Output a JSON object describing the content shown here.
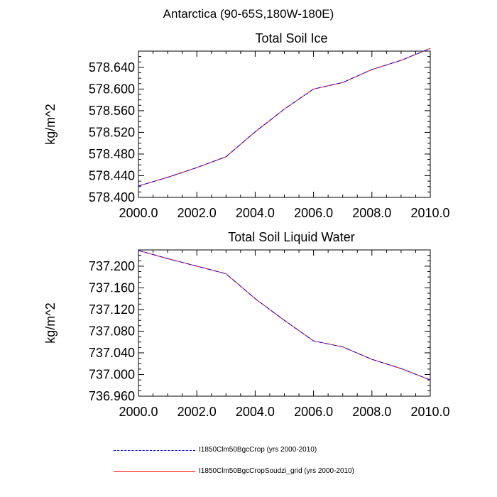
{
  "title": "Antarctica (90-65S,180W-180E)",
  "x": [
    2000,
    2001,
    2002,
    2003,
    2004,
    2005,
    2006,
    2007,
    2008,
    2009,
    2010
  ],
  "series_style": [
    {
      "name": "I1850Clm50BgcCrop (yrs 2000-2010)",
      "color": "#0000ff",
      "dash": "dashed"
    },
    {
      "name": "I1850Clm50BgcCropSoudzi_grid (yrs 2000-2010)",
      "color": "#ff0000",
      "dash": "solid"
    }
  ],
  "chart_data": [
    {
      "type": "line",
      "title": "Total Soil Ice",
      "xlabel": "",
      "ylabel": "kg/m^2",
      "xlim": [
        2000,
        2010
      ],
      "ylim": [
        578.4,
        578.67
      ],
      "xticks": [
        "2000.0",
        "2002.0",
        "2004.0",
        "2006.0",
        "2008.0",
        "2010.0"
      ],
      "yticks": [
        "578.400",
        "578.440",
        "578.480",
        "578.520",
        "578.560",
        "578.600",
        "578.640"
      ],
      "series": [
        {
          "name": "I1850Clm50BgcCrop (yrs 2000-2010)",
          "values": [
            578.421,
            578.437,
            578.455,
            578.475,
            578.521,
            578.563,
            578.6,
            578.612,
            578.636,
            578.653,
            578.675
          ]
        },
        {
          "name": "I1850Clm50BgcCropSoudzi_grid (yrs 2000-2010)",
          "values": [
            578.421,
            578.437,
            578.455,
            578.475,
            578.521,
            578.563,
            578.6,
            578.612,
            578.636,
            578.653,
            578.675
          ]
        }
      ]
    },
    {
      "type": "line",
      "title": "Total Soil Liquid Water",
      "xlabel": "",
      "ylabel": "kg/m^2",
      "xlim": [
        2000,
        2010
      ],
      "ylim": [
        736.96,
        737.23
      ],
      "xticks": [
        "2000.0",
        "2002.0",
        "2004.0",
        "2006.0",
        "2008.0",
        "2010.0"
      ],
      "yticks": [
        "736.960",
        "737.000",
        "737.040",
        "737.080",
        "737.120",
        "737.160",
        "737.200"
      ],
      "series": [
        {
          "name": "I1850Clm50BgcCrop (yrs 2000-2010)",
          "values": [
            737.229,
            737.214,
            737.2,
            737.186,
            737.14,
            737.1,
            737.062,
            737.051,
            737.028,
            737.011,
            736.99
          ]
        },
        {
          "name": "I1850Clm50BgcCropSoudzi_grid (yrs 2000-2010)",
          "values": [
            737.229,
            737.214,
            737.2,
            737.186,
            737.14,
            737.1,
            737.062,
            737.051,
            737.028,
            737.011,
            736.99
          ]
        }
      ]
    }
  ]
}
